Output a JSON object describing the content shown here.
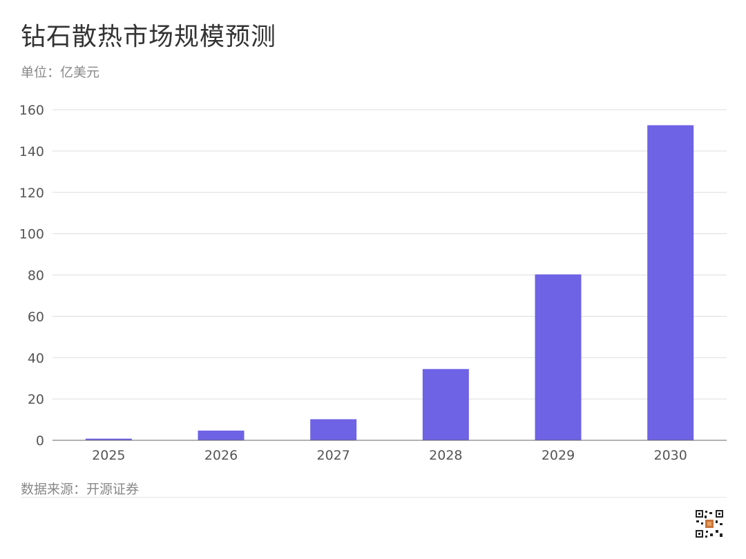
{
  "title": "钻石散热市场规模预测",
  "unit_label": "单位：亿美元",
  "source_label": "数据来源：开源证券",
  "colors": {
    "bar": "#6e62e5",
    "grid": "#dddddd",
    "axis": "#666666",
    "tick_text": "#555555"
  },
  "chart_data": {
    "type": "bar",
    "categories": [
      "2025",
      "2026",
      "2027",
      "2028",
      "2029",
      "2030"
    ],
    "values": [
      0.8,
      4.7,
      10.2,
      34.5,
      80.3,
      152.5
    ],
    "ylim": [
      0,
      160
    ],
    "yticks": [
      0,
      20,
      40,
      60,
      80,
      100,
      120,
      140,
      160
    ],
    "grid": true,
    "title": "钻石散热市场规模预测",
    "xlabel": "",
    "ylabel": ""
  }
}
